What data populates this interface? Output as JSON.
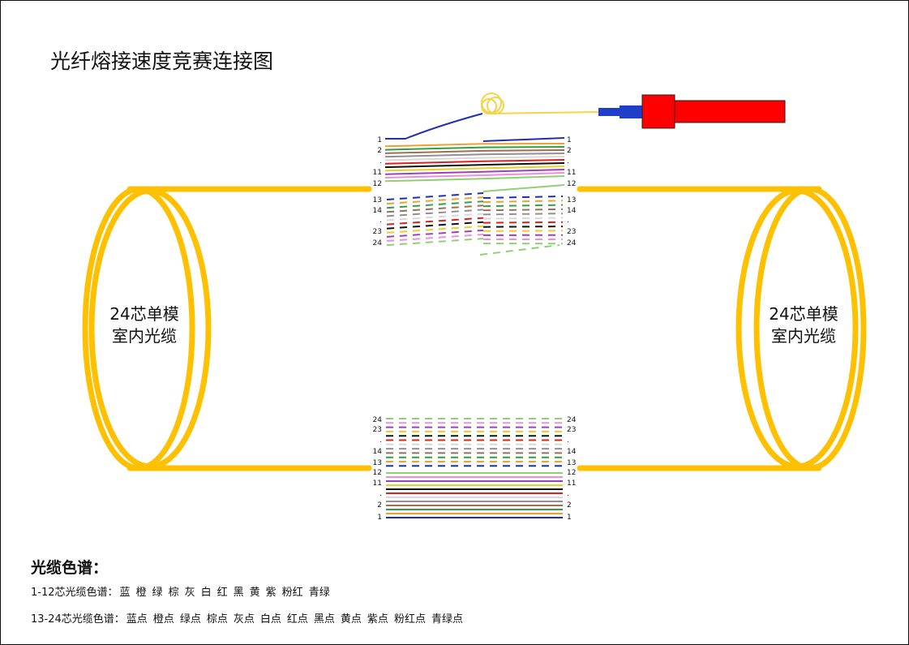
{
  "title": "光纤熔接速度竞赛连接图",
  "left_cable": {
    "line1": "24芯单模",
    "line2": "室内光缆"
  },
  "right_cable": {
    "line1": "24芯单模",
    "line2": "室内光缆"
  },
  "legend": {
    "title": "光缆色谱：",
    "row1_prefix": "1-12芯光缆色谱：",
    "row1_items": [
      "蓝",
      "橙",
      "绿",
      "棕",
      "灰",
      "白",
      "红",
      "黑",
      "黄",
      "紫",
      "粉红",
      "青绿"
    ],
    "row2_prefix": "13-24芯光缆色谱：",
    "row2_items": [
      "蓝点",
      "橙点",
      "绿点",
      "棕点",
      "灰点",
      "白点",
      "红点",
      "黑点",
      "黄点",
      "紫点",
      "粉红点",
      "青绿点"
    ]
  },
  "fiber_labels": {
    "top_left": [
      "1",
      "2",
      ".",
      "11",
      "12",
      "13",
      "14",
      ".",
      "23",
      "24"
    ],
    "top_right": [
      "1",
      "2",
      ".",
      "11",
      "12",
      "13",
      "14",
      ".",
      "23",
      "24"
    ],
    "bottom_left": [
      "24",
      "23",
      ".",
      "14",
      "13",
      "12",
      "11",
      ".",
      "2",
      "1"
    ],
    "bottom_right": [
      "24",
      "23",
      ".",
      "14",
      "13",
      "12",
      "11",
      ".",
      "2",
      "1"
    ]
  },
  "colors": {
    "cable": "#FFC000",
    "pigtail": "#F5D547",
    "connector_blue": "#1F3FCB",
    "meter_red": "#FF0000",
    "fiber_palette": [
      "#1F2FB0",
      "#F0A030",
      "#30A040",
      "#A06E50",
      "#909090",
      "#D8D8D8",
      "#E02020",
      "#111111",
      "#E8D020",
      "#9B40C0",
      "#F08CE0",
      "#8FD070"
    ]
  }
}
